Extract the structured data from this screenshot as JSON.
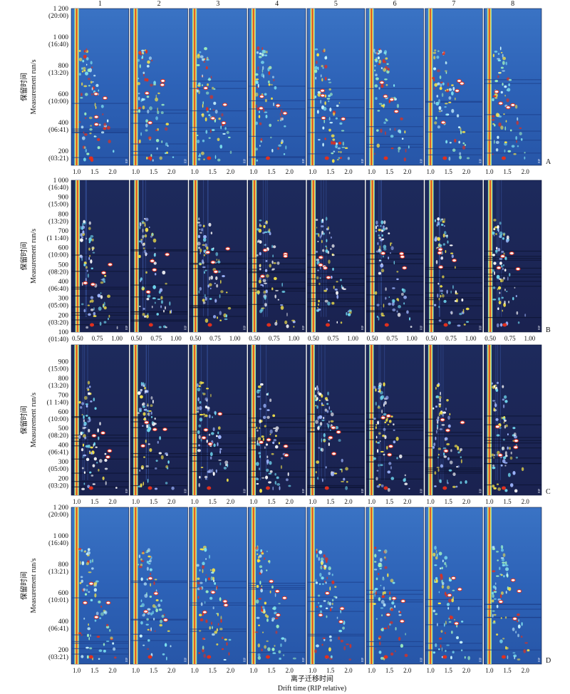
{
  "figure": {
    "column_labels": [
      "1",
      "2",
      "3",
      "4",
      "5",
      "6",
      "7",
      "8"
    ],
    "xlabel_cn": "离子迁移时间",
    "xlabel_en": "Drift time (RIP relative)",
    "side_label": "RIP",
    "colors": {
      "background_light": "#2f63b8",
      "background_dark": "#1b2453",
      "peak_cyan": "#7fe3f0",
      "peak_yellow": "#f3e24a",
      "peak_red": "#e0301e",
      "rip_line": "#d8261b"
    }
  },
  "chart_data": [
    {
      "type": "heatmap",
      "panel_label": "A",
      "ylabel_cn": "保留时间",
      "ylabel_en": "Measurement run/s",
      "ylim": [
        100,
        1200
      ],
      "y_ticks": [
        {
          "value": 1200,
          "label": "1 200",
          "sub": "(20:00)"
        },
        {
          "value": 1000,
          "label": "1 000",
          "sub": "(16:40)"
        },
        {
          "value": 800,
          "label": "800",
          "sub": "(13:20)"
        },
        {
          "value": 600,
          "label": "600",
          "sub": "(10:00)"
        },
        {
          "value": 400,
          "label": "400",
          "sub": "(06:41)"
        },
        {
          "value": 200,
          "label": "200",
          "sub": "(03:21)"
        }
      ],
      "xlim": [
        0.85,
        2.45
      ],
      "x_ticks": [
        {
          "value": 1.0,
          "label": "1.0"
        },
        {
          "value": 1.5,
          "label": "1.5"
        },
        {
          "value": 2.0,
          "label": "2.0"
        }
      ],
      "rip_position": 1.0,
      "theme": "light",
      "samples": [
        "1",
        "2",
        "3",
        "4",
        "5",
        "6",
        "7",
        "8"
      ]
    },
    {
      "type": "heatmap",
      "panel_label": "B",
      "ylabel_cn": "保留时间",
      "ylabel_en": "Measurement run/s",
      "ylim": [
        100,
        1000
      ],
      "y_ticks": [
        {
          "value": 1000,
          "label": "1 000",
          "sub": "(16:40)"
        },
        {
          "value": 900,
          "label": "900",
          "sub": "(15:00)"
        },
        {
          "value": 800,
          "label": "800",
          "sub": "(13:20)"
        },
        {
          "value": 700,
          "label": "700",
          "sub": "(1 1:40)"
        },
        {
          "value": 600,
          "label": "600",
          "sub": "(10:00)"
        },
        {
          "value": 500,
          "label": "500",
          "sub": "(08:20)"
        },
        {
          "value": 400,
          "label": "400",
          "sub": "(06:40)"
        },
        {
          "value": 300,
          "label": "300",
          "sub": "(05:00)"
        },
        {
          "value": 200,
          "label": "200",
          "sub": "(03:20)"
        },
        {
          "value": 100,
          "label": "100",
          "sub": "(01:40)"
        }
      ],
      "xlim": [
        0.42,
        1.15
      ],
      "x_ticks": [
        {
          "value": 0.5,
          "label": "0.50"
        },
        {
          "value": 0.75,
          "label": "0.75"
        },
        {
          "value": 1.0,
          "label": "1.00"
        }
      ],
      "rip_position": 0.5,
      "theme": "dark",
      "samples": [
        "1",
        "2",
        "3",
        "4",
        "5",
        "6",
        "7",
        "8"
      ]
    },
    {
      "type": "heatmap",
      "panel_label": "C",
      "ylabel_cn": "保留时间",
      "ylabel_en": "Measurement run/s",
      "ylim": [
        100,
        1000
      ],
      "y_ticks": [
        {
          "value": 900,
          "label": "900",
          "sub": "(15:00)"
        },
        {
          "value": 800,
          "label": "800",
          "sub": "(13:20)"
        },
        {
          "value": 700,
          "label": "700",
          "sub": "(1 1:40)"
        },
        {
          "value": 600,
          "label": "600",
          "sub": "(10:00)"
        },
        {
          "value": 500,
          "label": "500",
          "sub": "(08:20)"
        },
        {
          "value": 400,
          "label": "400",
          "sub": "(06:41)"
        },
        {
          "value": 300,
          "label": "300",
          "sub": "(05:00)"
        },
        {
          "value": 200,
          "label": "200",
          "sub": "(03:20)"
        }
      ],
      "xlim": [
        0.85,
        2.45
      ],
      "x_ticks": [
        {
          "value": 1.0,
          "label": "1.0"
        },
        {
          "value": 1.5,
          "label": "1.5"
        },
        {
          "value": 2.0,
          "label": "2.0"
        }
      ],
      "rip_position": 1.0,
      "theme": "dark",
      "samples": [
        "1",
        "2",
        "3",
        "4",
        "5",
        "6",
        "7",
        "8"
      ]
    },
    {
      "type": "heatmap",
      "panel_label": "D",
      "ylabel_cn": "保留时间",
      "ylabel_en": "Measurement run/s",
      "ylim": [
        100,
        1200
      ],
      "y_ticks": [
        {
          "value": 1200,
          "label": "1 200",
          "sub": "(20:00)"
        },
        {
          "value": 1000,
          "label": "1 000",
          "sub": "(16:40)"
        },
        {
          "value": 800,
          "label": "800",
          "sub": "(13:21)"
        },
        {
          "value": 600,
          "label": "600",
          "sub": "(10:01)"
        },
        {
          "value": 400,
          "label": "400",
          "sub": "(06:41)"
        },
        {
          "value": 200,
          "label": "200",
          "sub": "(03:21)"
        }
      ],
      "xlim": [
        0.85,
        2.45
      ],
      "x_ticks": [
        {
          "value": 1.0,
          "label": "1.0"
        },
        {
          "value": 1.5,
          "label": "1.5"
        },
        {
          "value": 2.0,
          "label": "2.0"
        }
      ],
      "rip_position": 1.0,
      "theme": "light",
      "samples": [
        "1",
        "2",
        "3",
        "4",
        "5",
        "6",
        "7",
        "8"
      ]
    }
  ]
}
